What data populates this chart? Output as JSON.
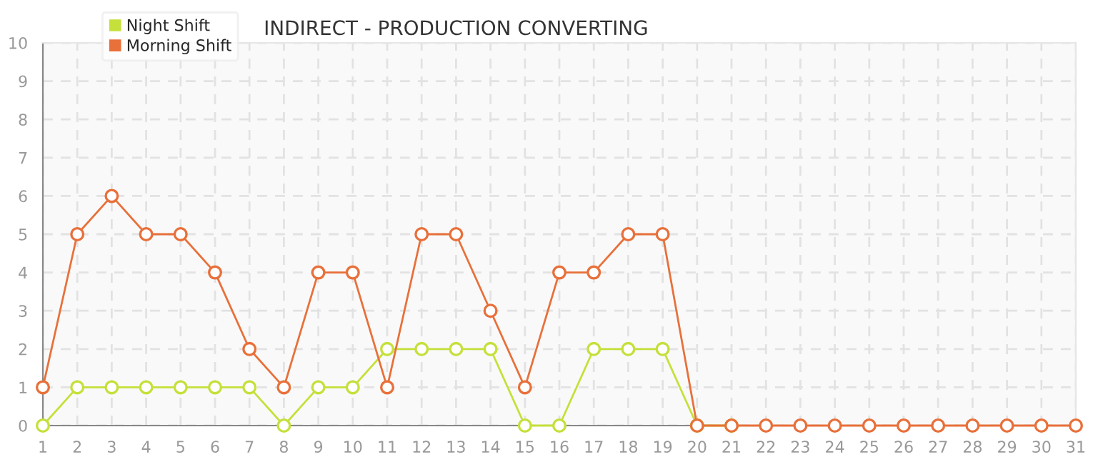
{
  "chart_data": {
    "type": "line",
    "title": "INDIRECT - PRODUCTION CONVERTING",
    "categories": [
      "1",
      "2",
      "3",
      "4",
      "5",
      "6",
      "7",
      "8",
      "9",
      "10",
      "11",
      "12",
      "13",
      "14",
      "15",
      "16",
      "17",
      "18",
      "19",
      "20",
      "21",
      "22",
      "23",
      "24",
      "25",
      "26",
      "27",
      "28",
      "29",
      "30",
      "31"
    ],
    "series": [
      {
        "name": "Night Shift",
        "color": "#c5e03a",
        "values": [
          0,
          1,
          1,
          1,
          1,
          1,
          1,
          0,
          1,
          1,
          2,
          2,
          2,
          2,
          0,
          0,
          2,
          2,
          2,
          0,
          0,
          null,
          null,
          null,
          null,
          null,
          null,
          null,
          null,
          null,
          null
        ]
      },
      {
        "name": "Morning Shift",
        "color": "#e8703a",
        "values": [
          1,
          5,
          6,
          5,
          5,
          4,
          2,
          1,
          4,
          4,
          1,
          5,
          5,
          3,
          1,
          4,
          4,
          5,
          5,
          0,
          0,
          0,
          0,
          0,
          0,
          0,
          0,
          0,
          0,
          0,
          0
        ]
      }
    ],
    "ylim": [
      0,
      10
    ],
    "yticks": [
      0,
      1,
      2,
      3,
      4,
      5,
      6,
      7,
      8,
      9,
      10
    ],
    "grid": true,
    "legend": "top left",
    "marker": "circle",
    "line_style": "solid"
  }
}
